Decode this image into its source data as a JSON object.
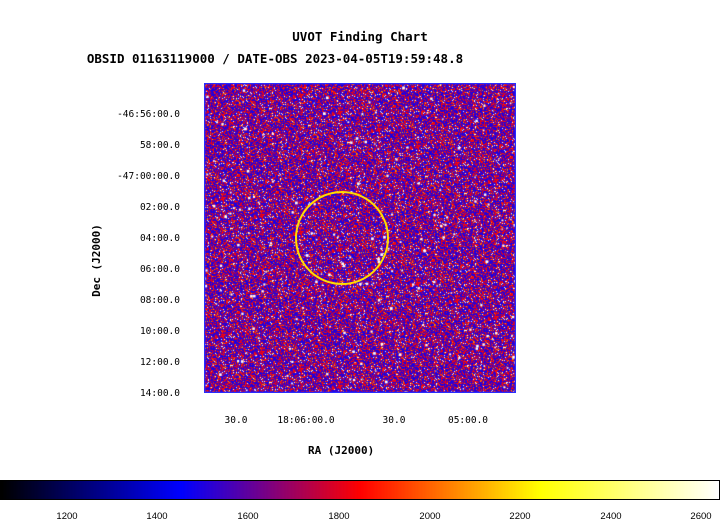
{
  "header": {
    "title": "UVOT Finding Chart",
    "subtitle": "OBSID 01163119000 / DATE-OBS 2023-04-05T19:59:48.8"
  },
  "axes": {
    "xlabel": "RA (J2000)",
    "ylabel": "Dec (J2000)",
    "yticks": [
      "-46:56:00.0",
      "58:00.0",
      "-47:00:00.0",
      "02:00.0",
      "04:00.0",
      "06:00.0",
      "08:00.0",
      "10:00.0",
      "12:00.0",
      "14:00.0"
    ],
    "xticks": [
      "30.0",
      "18:06:00.0",
      "30.0",
      "05:00.0"
    ]
  },
  "colorbar": {
    "ticks": [
      "1200",
      "1400",
      "1600",
      "1800",
      "2000",
      "2200",
      "2400",
      "2600"
    ],
    "colors": [
      "#000000",
      "#0000ff",
      "#ff0000",
      "#ffff00",
      "#ffffff"
    ]
  },
  "image": {
    "frame_color": "#2a2aff",
    "circle_color": "#ffdd00"
  }
}
